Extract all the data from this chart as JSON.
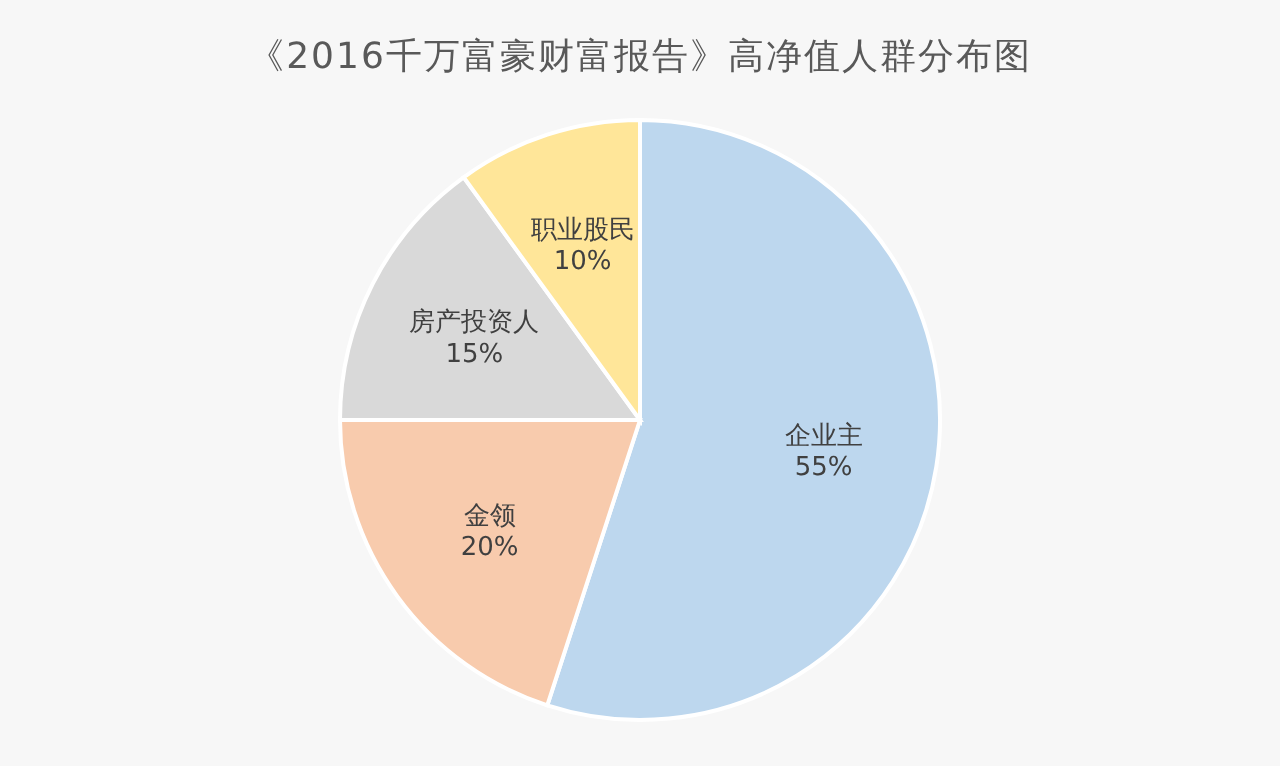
{
  "chart_data": {
    "type": "pie",
    "title": "《2016千万富豪财富报告》高净值人群分布图",
    "categories": [
      "企业主",
      "金领",
      "房产投资人",
      "职业股民"
    ],
    "values": [
      55,
      20,
      15,
      10
    ],
    "value_labels": [
      "55%",
      "20%",
      "15%",
      "10%"
    ],
    "colors": [
      "#bdd7ee",
      "#f8cbad",
      "#d9d9d9",
      "#ffe699"
    ]
  }
}
